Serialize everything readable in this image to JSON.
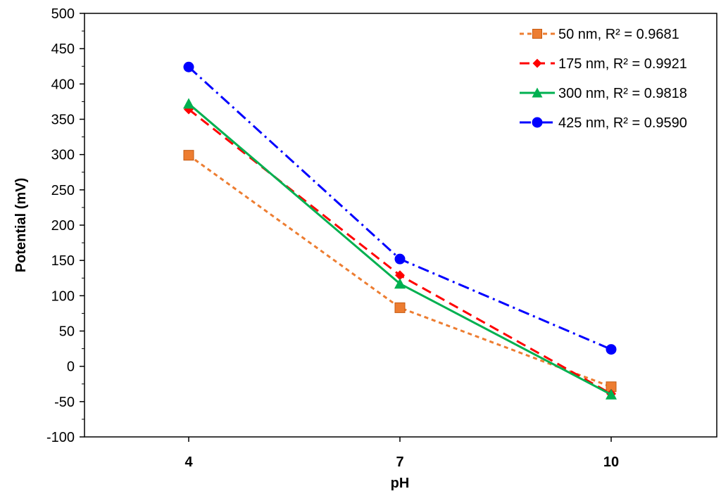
{
  "chart_data": {
    "type": "line",
    "xlabel": "pH",
    "ylabel": "Potential (mV)",
    "categories": [
      "4",
      "7",
      "10"
    ],
    "ylim": [
      -100,
      500
    ],
    "yticks": [
      -100,
      -50,
      0,
      50,
      100,
      150,
      200,
      250,
      300,
      350,
      400,
      450,
      500
    ],
    "grid": false,
    "legend_position": "top-right",
    "series": [
      {
        "name": "50 nm, R² = 0.9681",
        "values": [
          299,
          83,
          -29
        ],
        "color": "#ED7D31",
        "marker": "square",
        "dash": "dashed"
      },
      {
        "name": "175 nm, R² = 0.9921",
        "values": [
          364,
          129,
          -39
        ],
        "color": "#FF0000",
        "marker": "diamond",
        "dash": "long-dashed"
      },
      {
        "name": "300 nm, R² = 0.9818",
        "values": [
          372,
          117,
          -40
        ],
        "color": "#00B050",
        "marker": "triangle",
        "dash": "solid"
      },
      {
        "name": "425 nm, R² = 0.9590",
        "values": [
          424,
          152,
          24
        ],
        "color": "#0000FF",
        "marker": "circle",
        "dash": "dash-dot"
      }
    ]
  }
}
